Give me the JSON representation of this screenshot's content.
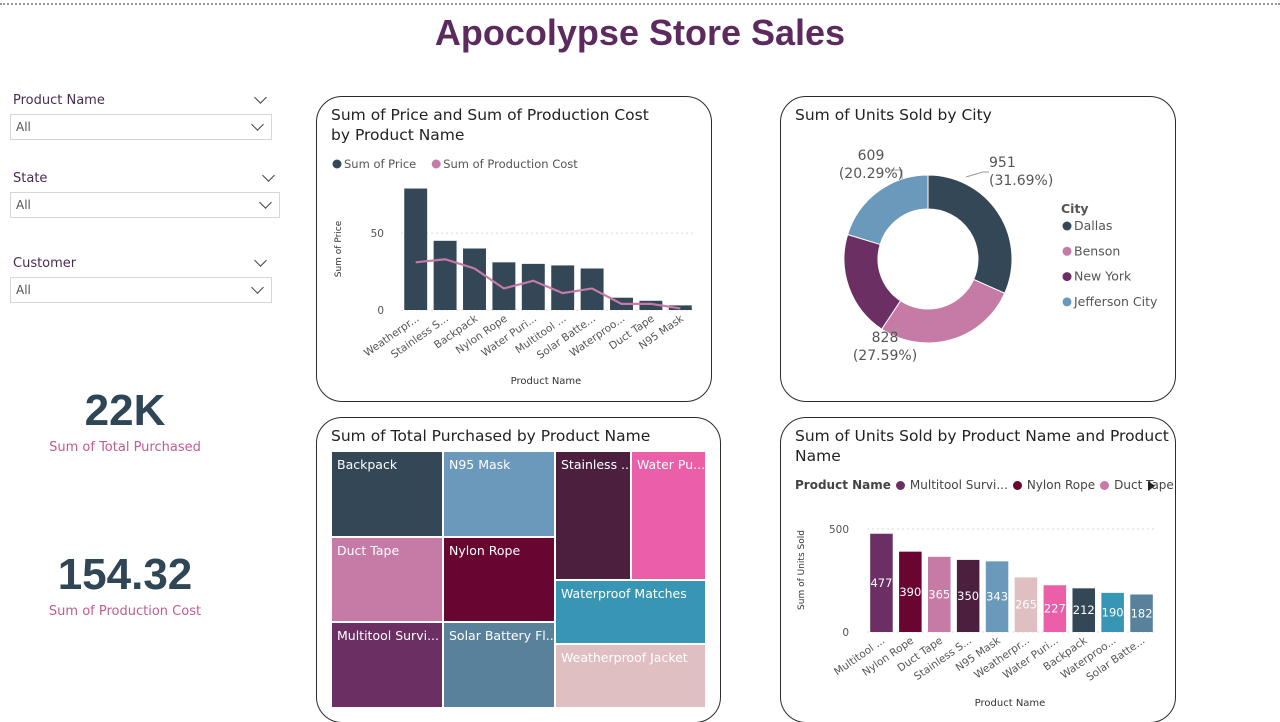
{
  "title": "Apocolypse Store Sales",
  "slicers": [
    {
      "label": "Product Name",
      "value": "All"
    },
    {
      "label": "State",
      "value": "All"
    },
    {
      "label": "Customer",
      "value": "All"
    }
  ],
  "cards": [
    {
      "value": "22K",
      "label": "Sum of Total Purchased"
    },
    {
      "value": "154.32",
      "label": "Sum of Production Cost"
    }
  ],
  "panels": {
    "price_cost": {
      "title": "Sum of Price and Sum of Production Cost by Product Name"
    },
    "city_donut": {
      "title": "Sum of Units Sold by City"
    },
    "treemap": {
      "title": "Sum of Total Purchased by Product Name"
    },
    "units_bar": {
      "title": "Sum of Units Sold by Product Name and Product Name"
    }
  },
  "colors": {
    "navy": "#344756",
    "pink": "#c67aa6",
    "purple": "#6b2f63",
    "blue": "#6a99bb",
    "maroon": "#680631",
    "plum": "#4c1f3f",
    "hotpink": "#ea5fa7",
    "teal": "#3696b3",
    "rose": "#dfbfc1",
    "slate": "#58829c",
    "title": "#5c2a5e"
  },
  "chart_data": [
    {
      "type": "bar",
      "title": "Sum of Price and Sum of Production Cost by Product Name",
      "xlabel": "Product Name",
      "ylabel": "Sum of Price",
      "categories": [
        "Weatherpr...",
        "Stainless S...",
        "Backpack",
        "Nylon Rope",
        "Water Puri...",
        "Multitool ...",
        "Solar Batte...",
        "Waterproo...",
        "Duct Tape",
        "N95 Mask"
      ],
      "series": [
        {
          "name": "Sum of Price",
          "kind": "bar",
          "values": [
            79,
            45,
            40,
            31,
            30,
            29,
            27,
            8,
            6,
            3
          ]
        },
        {
          "name": "Sum of Production Cost",
          "kind": "line",
          "values": [
            31,
            33,
            27,
            14,
            19,
            11,
            14,
            4,
            4,
            1
          ]
        }
      ],
      "ylim": [
        0,
        80
      ],
      "yticks": [
        "0",
        "50"
      ],
      "legend": "top-left",
      "grid": true
    },
    {
      "type": "pie",
      "donut": true,
      "title": "Sum of Units Sold by City",
      "legend_title": "City",
      "legend": "right",
      "slices": [
        {
          "name": "Dallas",
          "value": 951,
          "label": "951",
          "pct": "(31.69%)",
          "color": "#344756"
        },
        {
          "name": "Benson",
          "value": 828,
          "label": "828",
          "pct": "(27.59%)",
          "color": "#c67aa6"
        },
        {
          "name": "New York",
          "value": 613,
          "label": "",
          "pct": "",
          "color": "#6b2f63"
        },
        {
          "name": "Jefferson City",
          "value": 609,
          "label": "609",
          "pct": "(20.29%)",
          "color": "#6a99bb"
        }
      ]
    },
    {
      "type": "treemap",
      "title": "Sum of Total Purchased by Product Name",
      "items": [
        {
          "name": "Backpack",
          "color": "#344756"
        },
        {
          "name": "N95 Mask",
          "color": "#6a99bb"
        },
        {
          "name": "Duct Tape",
          "color": "#c67aa6"
        },
        {
          "name": "Nylon Rope",
          "color": "#680631"
        },
        {
          "name": "Multitool Survi...",
          "color": "#6b2f63"
        },
        {
          "name": "Solar Battery Fl...",
          "color": "#58829c"
        },
        {
          "name": "Stainless ...",
          "color": "#4c1f3f"
        },
        {
          "name": "Water Pu...",
          "color": "#ea5fa7"
        },
        {
          "name": "Waterproof Matches",
          "color": "#3696b3"
        },
        {
          "name": "Weatherproof Jacket",
          "color": "#dfbfc1"
        }
      ]
    },
    {
      "type": "bar",
      "title": "Sum of Units Sold by Product Name and Product Name",
      "xlabel": "Product Name",
      "ylabel": "Sum of Units Sold",
      "legend_title": "Product Name",
      "legend": "top-left",
      "legend_items": [
        {
          "name": "Multitool Survi...",
          "color": "#6b2f63"
        },
        {
          "name": "Nylon Rope",
          "color": "#680631"
        },
        {
          "name": "Duct Tape",
          "color": "#c67aa6"
        }
      ],
      "categories": [
        "Multitool ...",
        "Nylon Rope",
        "Duct Tape",
        "Stainless S...",
        "N95 Mask",
        "Weatherpr...",
        "Water Puri...",
        "Backpack",
        "Waterproo...",
        "Solar Batte..."
      ],
      "values": [
        477,
        390,
        365,
        350,
        343,
        265,
        227,
        212,
        190,
        182
      ],
      "labels": [
        "477",
        "390",
        "365",
        "350",
        "343",
        "265",
        "227",
        "212",
        "190",
        "182"
      ],
      "colors": [
        "#6b2f63",
        "#680631",
        "#c67aa6",
        "#4c1f3f",
        "#6a99bb",
        "#dfbfc1",
        "#ea5fa7",
        "#344756",
        "#3696b3",
        "#58829c"
      ],
      "ylim": [
        0,
        500
      ],
      "yticks": [
        "0",
        "500"
      ],
      "grid": true
    }
  ]
}
